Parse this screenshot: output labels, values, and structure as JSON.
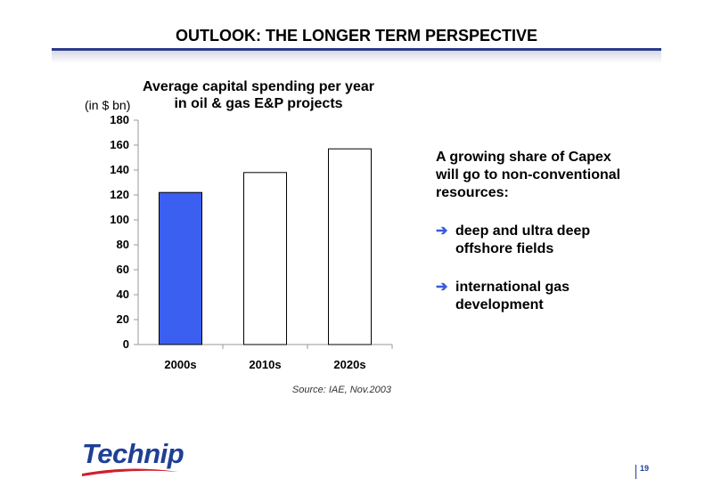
{
  "slide": {
    "title": "OUTLOOK: THE LONGER TERM PERSPECTIVE",
    "page_number": "19",
    "logo": "Technip"
  },
  "chart_data": {
    "type": "bar",
    "title": "Average capital spending per year in oil & gas E&P projects",
    "ylabel": "(in $ bn)",
    "xlabel": "",
    "categories": [
      "2000s",
      "2010s",
      "2020s"
    ],
    "values": [
      122,
      138,
      157
    ],
    "ylim": [
      0,
      180
    ],
    "yticks": [
      0,
      20,
      40,
      60,
      80,
      100,
      120,
      140,
      160,
      180
    ],
    "bar_colors": [
      "#3b5ff0",
      "#ffffff",
      "#ffffff"
    ],
    "grid": false,
    "source": "Source: IAE, Nov.2003"
  },
  "side_panel": {
    "intro_lines": [
      "A growing share of Capex",
      "will go to non-conventional",
      "resources:"
    ],
    "bullets": [
      {
        "icon": "arrow-right-icon",
        "lines": [
          "deep and ultra deep",
          "offshore fields"
        ]
      },
      {
        "icon": "arrow-right-icon",
        "lines": [
          "international gas",
          "development"
        ]
      }
    ]
  },
  "colors": {
    "accent": "#2b3a8c",
    "highlight_bar": "#3b5ff0",
    "bullet_arrow": "#3b5bdb",
    "logo_blue": "#1f3f96",
    "logo_red": "#d0202b"
  }
}
